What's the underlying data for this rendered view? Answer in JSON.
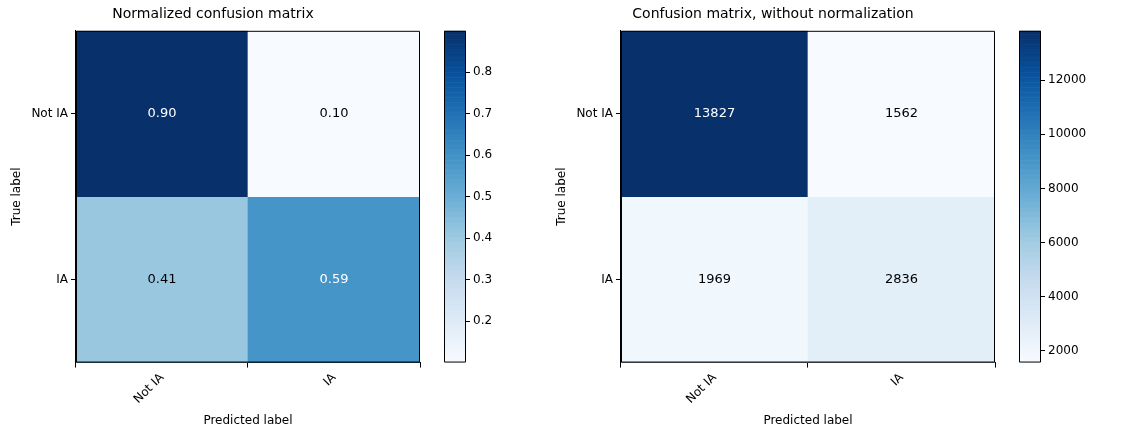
{
  "chart_data": [
    {
      "type": "heatmap",
      "title": "Normalized confusion matrix",
      "xlabel": "Predicted label",
      "ylabel": "True label",
      "categories": [
        "Not IA",
        "IA"
      ],
      "y_categories": [
        "Not IA",
        "IA"
      ],
      "cells": [
        [
          0.9,
          0.1
        ],
        [
          0.41,
          0.59
        ]
      ],
      "cell_labels": [
        [
          "0.90",
          "0.10"
        ],
        [
          "0.41",
          "0.59"
        ]
      ],
      "clim": [
        0.1,
        0.9
      ],
      "cticks": [
        0.2,
        0.3,
        0.4,
        0.5,
        0.6,
        0.7,
        0.8
      ],
      "data_labels": true
    },
    {
      "type": "heatmap",
      "title": "Confusion matrix, without normalization",
      "xlabel": "Predicted label",
      "ylabel": "True label",
      "categories": [
        "Not IA",
        "IA"
      ],
      "y_categories": [
        "Not IA",
        "IA"
      ],
      "cells": [
        [
          13827,
          1562
        ],
        [
          1969,
          2836
        ]
      ],
      "clim": [
        1562,
        13827
      ],
      "cticks": [
        2000,
        4000,
        6000,
        8000,
        10000,
        12000
      ],
      "data_labels": true
    }
  ]
}
